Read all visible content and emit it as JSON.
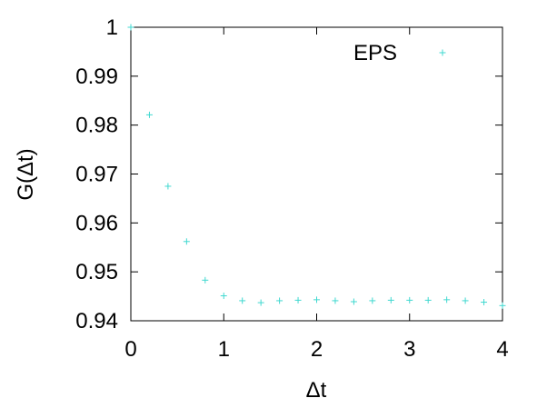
{
  "chart_data": {
    "type": "scatter",
    "title": "",
    "xlabel": "Δt",
    "ylabel": "G(Δt)",
    "xlim": [
      0,
      4
    ],
    "ylim": [
      0.94,
      1.0
    ],
    "xticks": [
      0,
      1,
      2,
      3,
      4
    ],
    "xtick_labels": [
      "0",
      "1",
      "2",
      "3",
      "4"
    ],
    "yticks": [
      0.94,
      0.95,
      0.96,
      0.97,
      0.98,
      0.99,
      1.0
    ],
    "ytick_labels": [
      "0.94",
      "0.95",
      "0.96",
      "0.97",
      "0.98",
      "0.99",
      "1"
    ],
    "grid": false,
    "legend": "top-right",
    "series": [
      {
        "name": "EPS",
        "marker": "plus",
        "color": "#40d8d0",
        "x": [
          0.0,
          0.2,
          0.4,
          0.6,
          0.8,
          1.0,
          1.2,
          1.4,
          1.6,
          1.8,
          2.0,
          2.2,
          2.4,
          2.6,
          2.8,
          3.0,
          3.2,
          3.4,
          3.6,
          3.8,
          4.0
        ],
        "y": [
          1.0,
          0.9821,
          0.9675,
          0.9562,
          0.9483,
          0.9451,
          0.9441,
          0.9437,
          0.9441,
          0.9442,
          0.9443,
          0.9441,
          0.9439,
          0.9441,
          0.9442,
          0.9442,
          0.9442,
          0.9443,
          0.9441,
          0.9438,
          0.9431
        ]
      }
    ]
  }
}
